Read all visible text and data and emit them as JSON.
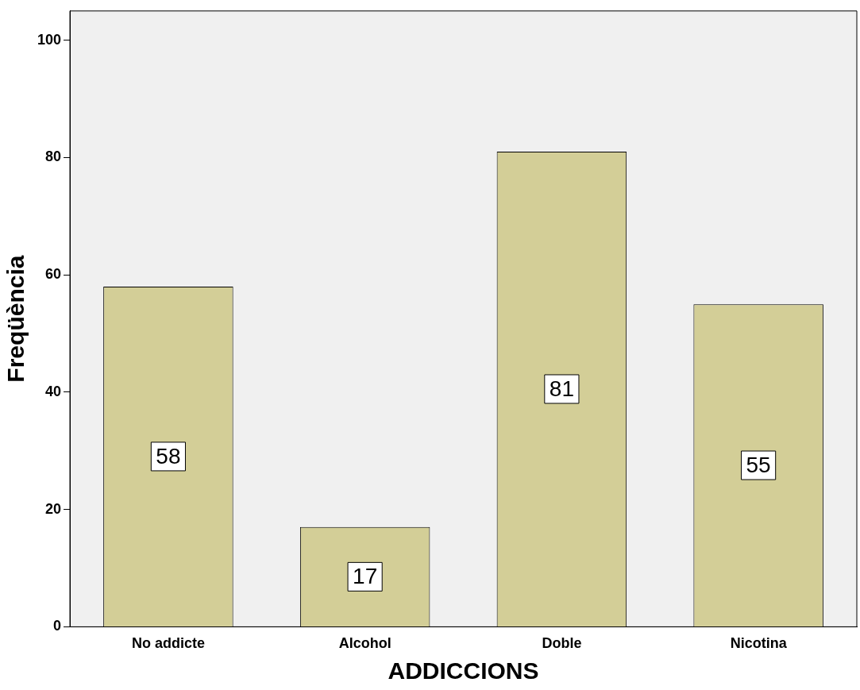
{
  "chart_data": {
    "type": "bar",
    "xlabel": "ADDICCIONS",
    "ylabel": "Freqüència",
    "categories": [
      "No addicte",
      "Alcohol",
      "Doble",
      "Nicotina"
    ],
    "values": [
      58,
      17,
      81,
      55
    ],
    "color": "#d3ce97",
    "ylim": [
      0,
      105
    ],
    "yticks": [
      0,
      20,
      40,
      60,
      80,
      100
    ],
    "grid": false,
    "legend": false,
    "data_labels": true
  }
}
